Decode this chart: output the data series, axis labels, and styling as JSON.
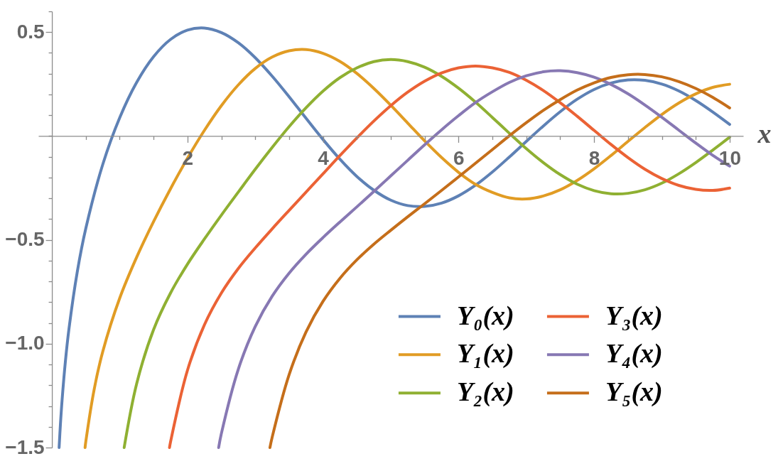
{
  "chart_data": {
    "type": "line",
    "xlabel": "x",
    "xlim": [
      -0.2,
      10.2
    ],
    "ylim": [
      -1.5,
      0.6
    ],
    "xticks": [
      {
        "value": 0.5,
        "label": null
      },
      {
        "value": 1,
        "label": null
      },
      {
        "value": 1.5,
        "label": null
      },
      2,
      {
        "value": 2.5,
        "label": null
      },
      {
        "value": 3,
        "label": null
      },
      {
        "value": 3.5,
        "label": null
      },
      4,
      {
        "value": 4.5,
        "label": null
      },
      {
        "value": 5,
        "label": null
      },
      {
        "value": 5.5,
        "label": null
      },
      6,
      {
        "value": 6.5,
        "label": null
      },
      {
        "value": 7,
        "label": null
      },
      {
        "value": 7.5,
        "label": null
      },
      8,
      {
        "value": 8.5,
        "label": null
      },
      {
        "value": 9,
        "label": null
      },
      {
        "value": 9.5,
        "label": null
      },
      10
    ],
    "yticks": [
      {
        "value": -1.5,
        "label": "−1.5"
      },
      {
        "value": -1.4,
        "label": null
      },
      {
        "value": -1.3,
        "label": null
      },
      {
        "value": -1.2,
        "label": null
      },
      {
        "value": -1.1,
        "label": null
      },
      {
        "value": -1.0,
        "label": "−1.0"
      },
      {
        "value": -0.9,
        "label": null
      },
      {
        "value": -0.8,
        "label": null
      },
      {
        "value": -0.7,
        "label": null
      },
      {
        "value": -0.6,
        "label": null
      },
      {
        "value": -0.5,
        "label": "−0.5"
      },
      {
        "value": -0.4,
        "label": null
      },
      {
        "value": -0.3,
        "label": null
      },
      {
        "value": -0.2,
        "label": null
      },
      {
        "value": -0.1,
        "label": null
      },
      {
        "value": 0,
        "label": null
      },
      {
        "value": 0.1,
        "label": null
      },
      {
        "value": 0.2,
        "label": null
      },
      {
        "value": 0.3,
        "label": null
      },
      {
        "value": 0.4,
        "label": null
      },
      0.5,
      {
        "value": 0.6,
        "label": null
      }
    ],
    "grid": false,
    "legend": "bottom right",
    "series": [
      {
        "name": "Y₀(x)",
        "color": "#5e81b5",
        "x": [
          0.106,
          0.125,
          0.15,
          0.2,
          0.25,
          0.375,
          0.5,
          0.75,
          1,
          1.25,
          1.5,
          1.75,
          2,
          2.25,
          2.5,
          2.75,
          3,
          3.25,
          3.5,
          3.75,
          4,
          4.25,
          4.5,
          4.75,
          5,
          5.25,
          5.5,
          5.75,
          6,
          6.25,
          6.5,
          6.75,
          7,
          7.25,
          7.5,
          7.75,
          8,
          8.25,
          8.5,
          8.75,
          9,
          9.25,
          9.5,
          9.75,
          10
        ],
        "values": [
          -1.5,
          -1.39,
          -1.271,
          -1.081,
          -0.932,
          -0.652,
          -0.445,
          -0.137,
          0.088,
          0.258,
          0.382,
          0.465,
          0.51,
          0.52,
          0.498,
          0.449,
          0.377,
          0.288,
          0.189,
          0.085,
          -0.017,
          -0.112,
          -0.195,
          -0.261,
          -0.309,
          -0.335,
          -0.339,
          -0.323,
          -0.288,
          -0.237,
          -0.173,
          -0.101,
          -0.026,
          0.048,
          0.117,
          0.177,
          0.224,
          0.255,
          0.27,
          0.268,
          0.25,
          0.217,
          0.171,
          0.116,
          0.056
        ]
      },
      {
        "name": "Y₁(x)",
        "color": "#e19c24",
        "x": [
          0.489,
          0.5,
          0.625,
          0.75,
          1,
          1.25,
          1.5,
          1.75,
          2,
          2.25,
          2.5,
          2.75,
          3,
          3.25,
          3.5,
          3.75,
          4,
          4.25,
          4.5,
          4.75,
          5,
          5.25,
          5.5,
          5.75,
          6,
          6.25,
          6.5,
          6.75,
          7,
          7.25,
          7.5,
          7.75,
          8,
          8.25,
          8.5,
          8.75,
          9,
          9.25,
          9.5,
          9.75,
          10
        ],
        "values": [
          -1.5,
          -1.471,
          -1.217,
          -1.038,
          -0.781,
          -0.584,
          -0.412,
          -0.254,
          -0.107,
          0.027,
          0.146,
          0.246,
          0.325,
          0.38,
          0.41,
          0.416,
          0.398,
          0.359,
          0.301,
          0.229,
          0.148,
          0.062,
          -0.024,
          -0.104,
          -0.175,
          -0.233,
          -0.272,
          -0.298,
          -0.303,
          -0.289,
          -0.259,
          -0.214,
          -0.158,
          -0.094,
          -0.026,
          0.041,
          0.104,
          0.159,
          0.203,
          0.234,
          0.249
        ]
      },
      {
        "name": "Y₂(x)",
        "color": "#8fb032",
        "x": [
          1.066,
          1.25,
          1.5,
          1.75,
          2,
          2.25,
          2.5,
          2.75,
          3,
          3.25,
          3.5,
          3.75,
          4,
          4.25,
          4.5,
          4.75,
          5,
          5.25,
          5.5,
          5.75,
          6,
          6.25,
          6.5,
          6.75,
          7,
          7.25,
          7.5,
          7.75,
          8,
          8.25,
          8.5,
          8.75,
          9,
          9.25,
          9.5,
          9.75,
          10
        ],
        "values": [
          -1.5,
          -1.193,
          -0.932,
          -0.756,
          -0.617,
          -0.496,
          -0.381,
          -0.27,
          -0.16,
          -0.055,
          0.045,
          0.136,
          0.216,
          0.281,
          0.328,
          0.358,
          0.368,
          0.358,
          0.331,
          0.287,
          0.23,
          0.163,
          0.089,
          0.013,
          -0.061,
          -0.128,
          -0.186,
          -0.232,
          -0.263,
          -0.278,
          -0.276,
          -0.259,
          -0.227,
          -0.182,
          -0.128,
          -0.068,
          -0.006
        ]
      },
      {
        "name": "Y₃(x)",
        "color": "#eb6235",
        "x": [
          1.735,
          1.75,
          2,
          2.25,
          2.5,
          2.75,
          3,
          3.25,
          3.5,
          3.75,
          4,
          4.25,
          4.5,
          4.75,
          5,
          5.25,
          5.5,
          5.75,
          6,
          6.25,
          6.5,
          6.75,
          7,
          7.25,
          7.5,
          7.75,
          8,
          8.25,
          8.5,
          8.75,
          9,
          9.25,
          9.5,
          9.75,
          10
        ],
        "values": [
          -1.5,
          -1.473,
          -1.128,
          -0.909,
          -0.756,
          -0.638,
          -0.539,
          -0.447,
          -0.358,
          -0.27,
          -0.182,
          -0.094,
          -0.009,
          0.072,
          0.146,
          0.211,
          0.264,
          0.304,
          0.328,
          0.337,
          0.328,
          0.306,
          0.268,
          0.219,
          0.16,
          0.095,
          0.027,
          -0.041,
          -0.104,
          -0.16,
          -0.205,
          -0.238,
          -0.257,
          -0.262,
          -0.251
        ]
      },
      {
        "name": "Y₄(x)",
        "color": "#8778b3",
        "x": [
          2.46,
          2.5,
          2.75,
          3,
          3.25,
          3.5,
          3.75,
          4,
          4.25,
          4.5,
          4.75,
          5,
          5.25,
          5.5,
          5.75,
          6,
          6.25,
          6.5,
          6.75,
          7,
          7.25,
          7.5,
          7.75,
          8,
          8.25,
          8.5,
          8.75,
          9,
          9.25,
          9.5,
          9.75,
          10
        ],
        "values": [
          -1.5,
          -1.433,
          -1.123,
          -0.917,
          -0.771,
          -0.66,
          -0.569,
          -0.489,
          -0.414,
          -0.341,
          -0.267,
          -0.192,
          -0.117,
          -0.042,
          0.03,
          0.098,
          0.161,
          0.213,
          0.258,
          0.29,
          0.309,
          0.314,
          0.305,
          0.283,
          0.248,
          0.203,
          0.149,
          0.09,
          0.028,
          -0.034,
          -0.093,
          -0.145
        ]
      },
      {
        "name": "Y₅(x)",
        "color": "#c56e1a",
        "x": [
          3.217,
          3.25,
          3.5,
          3.75,
          4,
          4.25,
          4.5,
          4.75,
          5,
          5.25,
          5.5,
          5.75,
          6,
          6.25,
          6.5,
          6.75,
          7,
          7.25,
          7.5,
          7.75,
          8,
          8.25,
          8.5,
          8.75,
          9,
          9.25,
          9.5,
          9.75,
          10
        ],
        "values": [
          -1.5,
          -1.45,
          -1.149,
          -0.943,
          -0.796,
          -0.685,
          -0.596,
          -0.521,
          -0.454,
          -0.389,
          -0.326,
          -0.262,
          -0.197,
          -0.131,
          -0.065,
          0.001,
          0.064,
          0.123,
          0.175,
          0.221,
          0.256,
          0.282,
          0.295,
          0.296,
          0.285,
          0.262,
          0.229,
          0.186,
          0.135
        ]
      }
    ]
  }
}
